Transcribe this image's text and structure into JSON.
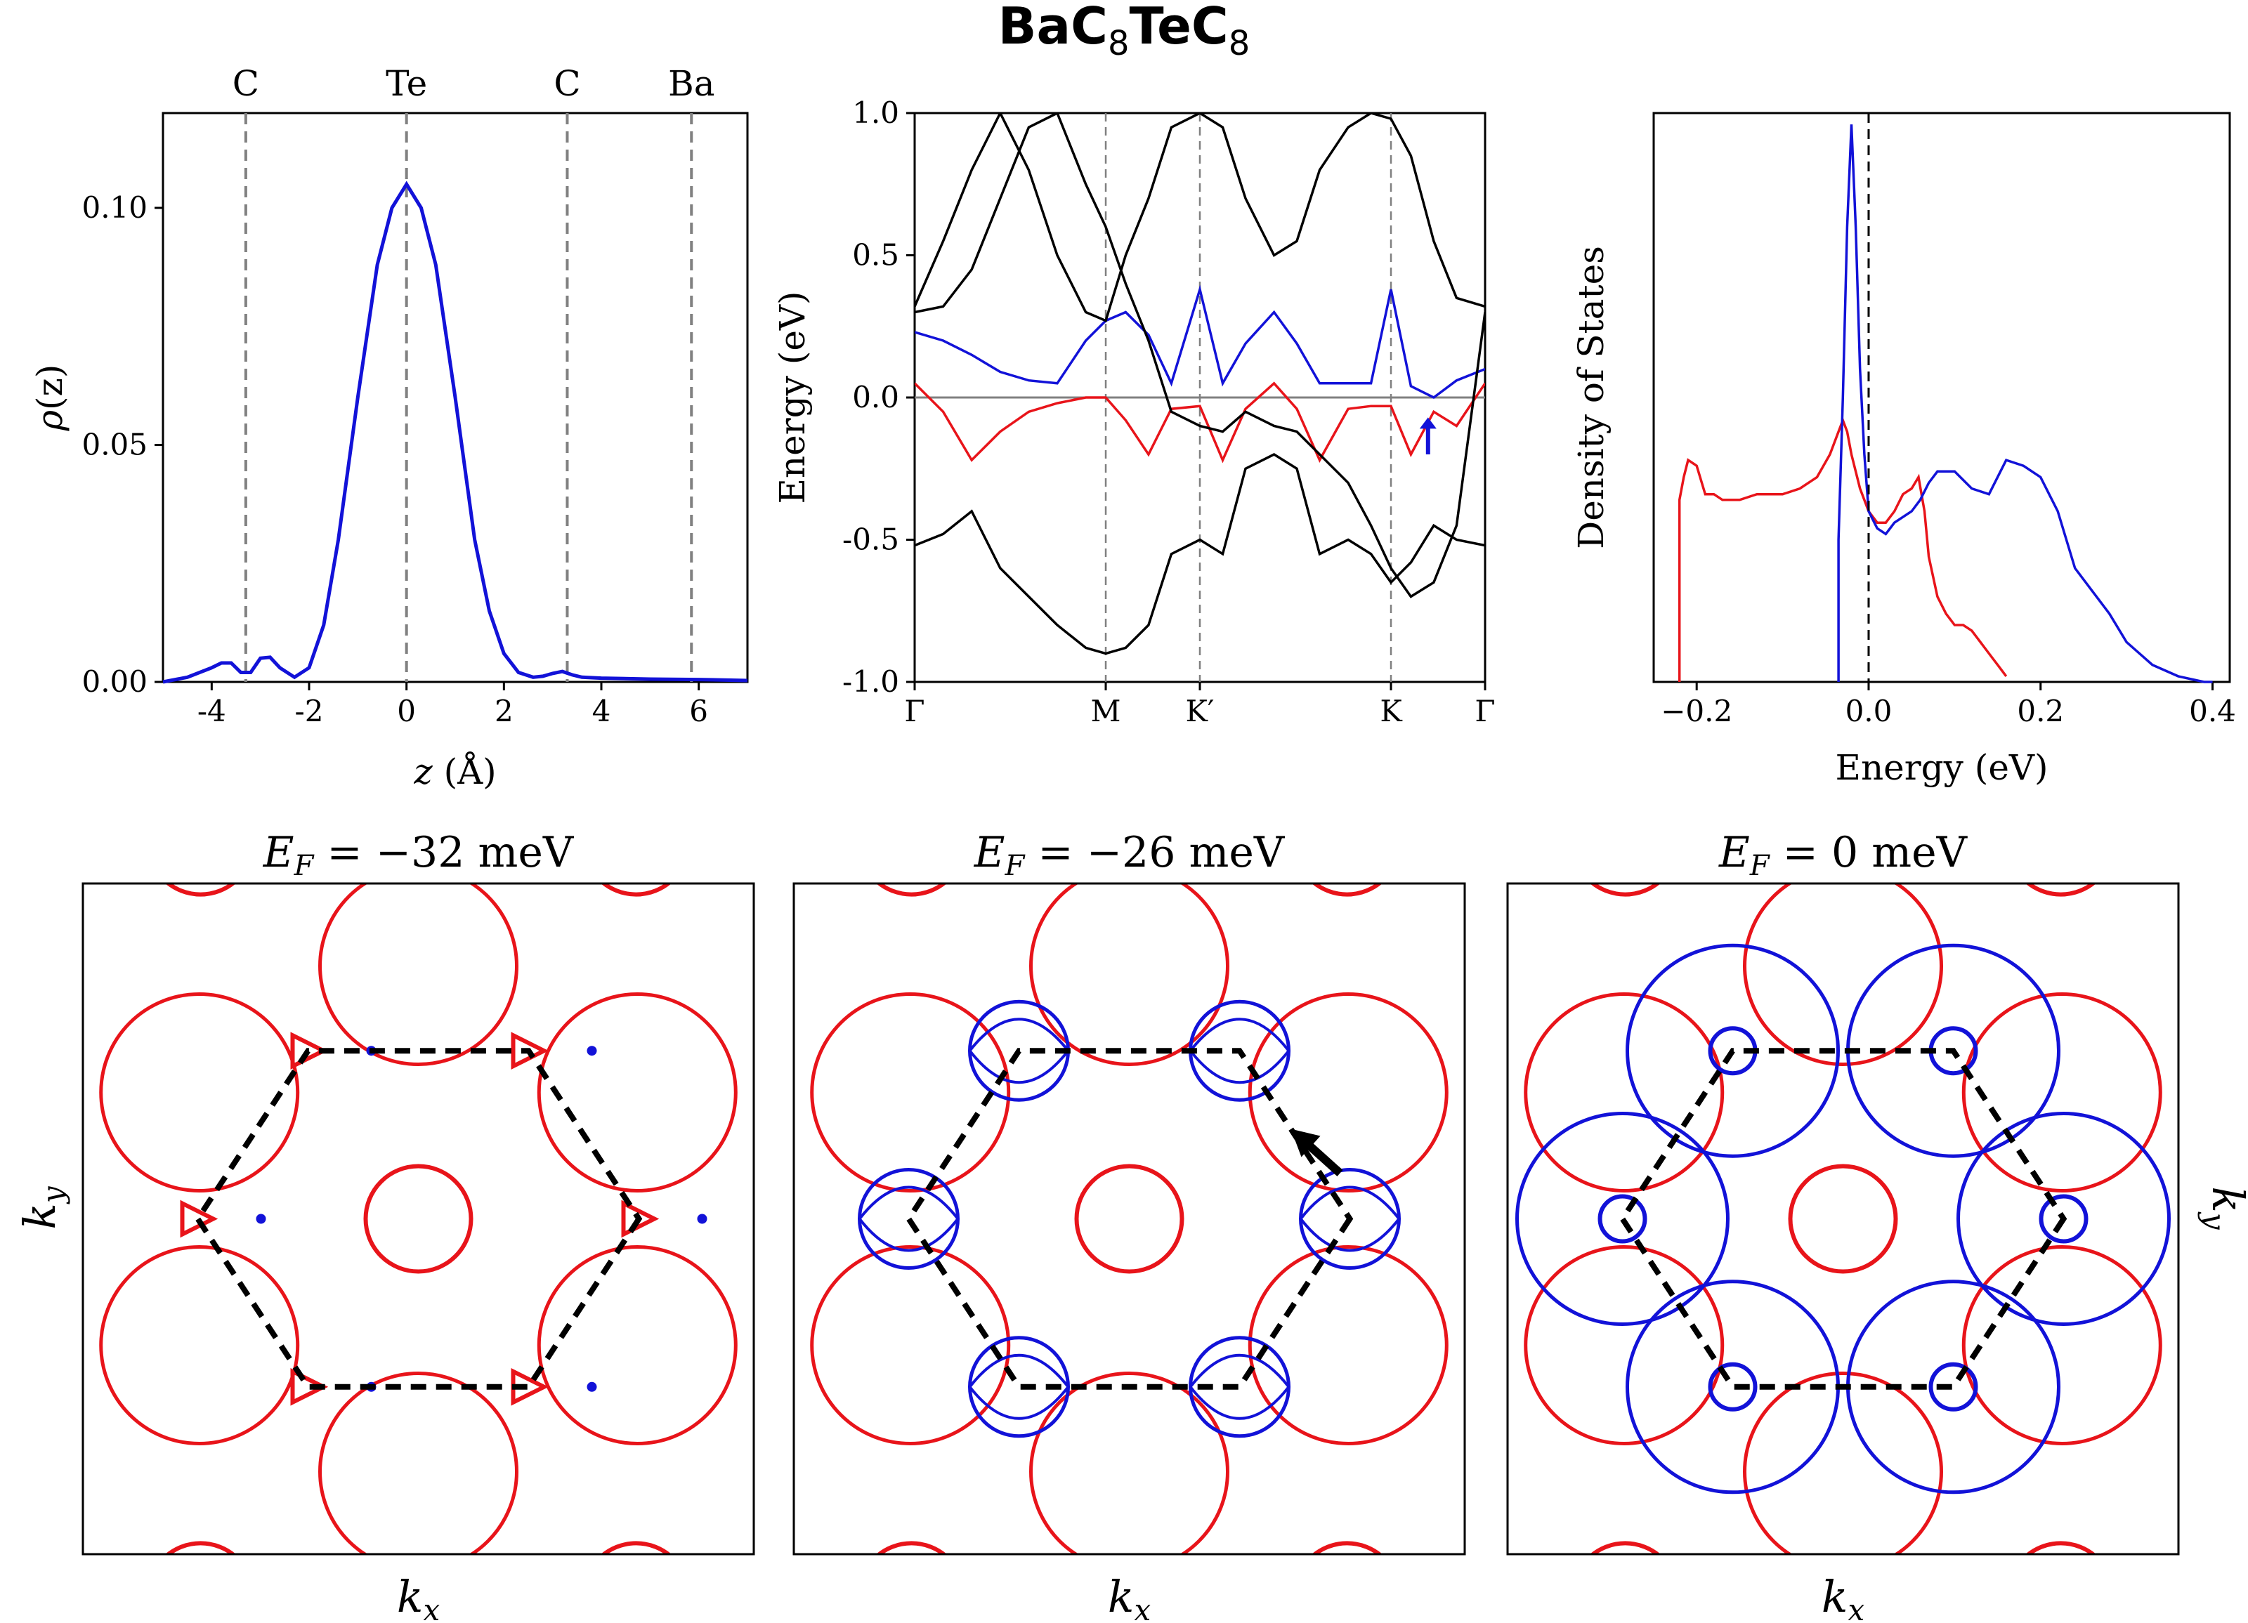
{
  "figure": {
    "title_main": "BaC",
    "title_sub1": "8",
    "title_mid": "TeC",
    "title_sub2": "8"
  },
  "colors": {
    "red": "#e8141a",
    "blue": "#1212d8",
    "black": "#000000",
    "gray": "#808080"
  },
  "chart_data": [
    {
      "type": "line",
      "panel": "charge-density",
      "xlabel_var": "z",
      "xlabel_unit": "(Å)",
      "ylabel_func": "ρ",
      "ylabel_arg": "(z)",
      "xlim": [
        -5,
        7
      ],
      "ylim": [
        0,
        0.12
      ],
      "x_ticks": [
        "-4",
        "-2",
        "0",
        "2",
        "4",
        "6"
      ],
      "y_ticks": [
        "0.00",
        "0.05",
        "0.10"
      ],
      "atom_markers": [
        {
          "label": "C",
          "z": -3.3
        },
        {
          "label": "Te",
          "z": 0.0
        },
        {
          "label": "C",
          "z": 3.3
        },
        {
          "label": "Ba",
          "z": 5.85
        }
      ],
      "series": [
        {
          "color": "blue",
          "x": [
            -5,
            -4.5,
            -4,
            -3.8,
            -3.6,
            -3.4,
            -3.2,
            -3.0,
            -2.8,
            -2.6,
            -2.3,
            -2.0,
            -1.7,
            -1.4,
            -1.0,
            -0.6,
            -0.3,
            0.0,
            0.3,
            0.6,
            1.0,
            1.4,
            1.7,
            2.0,
            2.3,
            2.6,
            2.8,
            3.0,
            3.2,
            3.4,
            3.6,
            4.0,
            5.0,
            6.0,
            7.0
          ],
          "y": [
            0.0,
            0.001,
            0.003,
            0.004,
            0.004,
            0.002,
            0.002,
            0.005,
            0.0052,
            0.003,
            0.001,
            0.003,
            0.012,
            0.03,
            0.06,
            0.088,
            0.1,
            0.105,
            0.1,
            0.088,
            0.06,
            0.03,
            0.015,
            0.006,
            0.002,
            0.001,
            0.0012,
            0.0018,
            0.0022,
            0.0015,
            0.001,
            0.0008,
            0.0006,
            0.0005,
            0.0003
          ]
        }
      ]
    },
    {
      "type": "line",
      "panel": "band-structure",
      "ylabel": "Energy (eV)",
      "ylim": [
        -1.0,
        1.0
      ],
      "y_ticks": [
        "-1.0",
        "-0.5",
        "0.0",
        "0.5",
        "1.0"
      ],
      "kpath_labels": [
        "Γ",
        "M",
        "K′",
        "K",
        "Γ"
      ],
      "kpath_positions": [
        0,
        0.335,
        0.5,
        0.835,
        1.0
      ],
      "x": [
        0,
        0.05,
        0.1,
        0.15,
        0.2,
        0.25,
        0.3,
        0.335,
        0.37,
        0.41,
        0.45,
        0.5,
        0.54,
        0.58,
        0.63,
        0.67,
        0.71,
        0.76,
        0.8,
        0.835,
        0.87,
        0.91,
        0.95,
        1.0
      ],
      "series": [
        {
          "name": "blue band",
          "color": "blue",
          "values": [
            0.23,
            0.2,
            0.15,
            0.09,
            0.06,
            0.05,
            0.2,
            0.27,
            0.3,
            0.22,
            0.05,
            0.38,
            0.05,
            0.19,
            0.3,
            0.19,
            0.05,
            0.05,
            0.05,
            0.38,
            0.04,
            0.0,
            0.06,
            0.1
          ]
        },
        {
          "name": "red band",
          "color": "red",
          "values": [
            0.05,
            -0.05,
            -0.22,
            -0.12,
            -0.05,
            -0.02,
            0.0,
            0.0,
            -0.08,
            -0.2,
            -0.04,
            -0.03,
            -0.22,
            -0.04,
            0.05,
            -0.04,
            -0.22,
            -0.04,
            -0.03,
            -0.03,
            -0.2,
            -0.05,
            -0.1,
            0.05
          ]
        },
        {
          "name": "band 1",
          "color": "black",
          "values": [
            0.32,
            0.55,
            0.8,
            1.0,
            0.8,
            0.5,
            0.3,
            0.27,
            0.5,
            0.7,
            0.95,
            1.0,
            0.95,
            0.7,
            0.5,
            0.55,
            0.8,
            0.95,
            1.0,
            0.98,
            0.85,
            0.55,
            0.35,
            0.32
          ]
        },
        {
          "name": "band 2",
          "color": "black",
          "values": [
            -0.52,
            -0.48,
            -0.4,
            -0.6,
            -0.7,
            -0.8,
            -0.88,
            -0.9,
            -0.88,
            -0.8,
            -0.55,
            -0.5,
            -0.55,
            -0.25,
            -0.2,
            -0.25,
            -0.55,
            -0.5,
            -0.55,
            -0.65,
            -0.58,
            -0.45,
            -0.5,
            -0.52
          ]
        },
        {
          "name": "band 3",
          "color": "black",
          "values": [
            0.3,
            0.32,
            0.45,
            0.7,
            0.95,
            1.0,
            0.75,
            0.6,
            0.4,
            0.2,
            -0.05,
            -0.1,
            -0.12,
            -0.05,
            -0.1,
            -0.12,
            -0.2,
            -0.3,
            -0.45,
            -0.6,
            -0.7,
            -0.65,
            -0.45,
            0.3
          ]
        }
      ],
      "arrow": {
        "k": 0.9,
        "from": -0.2,
        "to": -0.07,
        "color": "blue"
      }
    },
    {
      "type": "line",
      "panel": "density-of-states",
      "xlabel": "Energy (eV)",
      "ylabel": "Density of States",
      "xlim": [
        -0.25,
        0.42
      ],
      "ylim": [
        0,
        1.0
      ],
      "x_ticks": [
        "−0.2",
        "0.0",
        "0.2",
        "0.4"
      ],
      "x_tick_values": [
        -0.2,
        0.0,
        0.2,
        0.4
      ],
      "series": [
        {
          "name": "red DOS",
          "color": "red",
          "x": [
            -0.22,
            -0.22,
            -0.215,
            -0.21,
            -0.2,
            -0.19,
            -0.18,
            -0.17,
            -0.15,
            -0.13,
            -0.1,
            -0.08,
            -0.06,
            -0.045,
            -0.035,
            -0.03,
            -0.025,
            -0.02,
            -0.01,
            0.0,
            0.01,
            0.02,
            0.03,
            0.04,
            0.05,
            0.058,
            0.065,
            0.07,
            0.08,
            0.09,
            0.1,
            0.11,
            0.12,
            0.13,
            0.14,
            0.15,
            0.16
          ],
          "y": [
            0.0,
            0.32,
            0.36,
            0.39,
            0.38,
            0.33,
            0.33,
            0.32,
            0.32,
            0.33,
            0.33,
            0.34,
            0.36,
            0.4,
            0.44,
            0.46,
            0.44,
            0.4,
            0.34,
            0.3,
            0.28,
            0.28,
            0.3,
            0.33,
            0.34,
            0.36,
            0.3,
            0.22,
            0.15,
            0.12,
            0.1,
            0.1,
            0.09,
            0.07,
            0.05,
            0.03,
            0.01
          ]
        },
        {
          "name": "blue DOS",
          "color": "blue",
          "x": [
            -0.035,
            -0.035,
            -0.03,
            -0.025,
            -0.02,
            -0.015,
            -0.01,
            -0.005,
            0.0,
            0.01,
            0.02,
            0.03,
            0.05,
            0.06,
            0.07,
            0.08,
            0.1,
            0.12,
            0.14,
            0.16,
            0.18,
            0.2,
            0.22,
            0.24,
            0.26,
            0.28,
            0.3,
            0.33,
            0.36,
            0.39,
            0.4
          ],
          "y": [
            0.0,
            0.25,
            0.5,
            0.8,
            0.98,
            0.8,
            0.55,
            0.4,
            0.3,
            0.27,
            0.26,
            0.28,
            0.3,
            0.32,
            0.35,
            0.37,
            0.37,
            0.34,
            0.33,
            0.39,
            0.38,
            0.36,
            0.3,
            0.2,
            0.16,
            0.12,
            0.07,
            0.03,
            0.01,
            0.0,
            0.0
          ]
        }
      ],
      "fermi_line": 0.0
    },
    {
      "type": "contour",
      "panel": "fermi-surface",
      "maps": [
        {
          "title_pre": "E",
          "title_sub": "F",
          "title_post": " = −32 meV",
          "bands": [
            "red"
          ]
        },
        {
          "title_pre": "E",
          "title_sub": "F",
          "title_post": " = −26 meV",
          "bands": [
            "red",
            "blue"
          ]
        },
        {
          "title_pre": "E",
          "title_sub": "F",
          "title_post": " = 0 meV",
          "bands": [
            "red",
            "blue"
          ]
        }
      ],
      "xlabel_base": "k",
      "xlabel_sub": "x",
      "ylabel_base": "k",
      "ylabel_sub": "y"
    }
  ]
}
